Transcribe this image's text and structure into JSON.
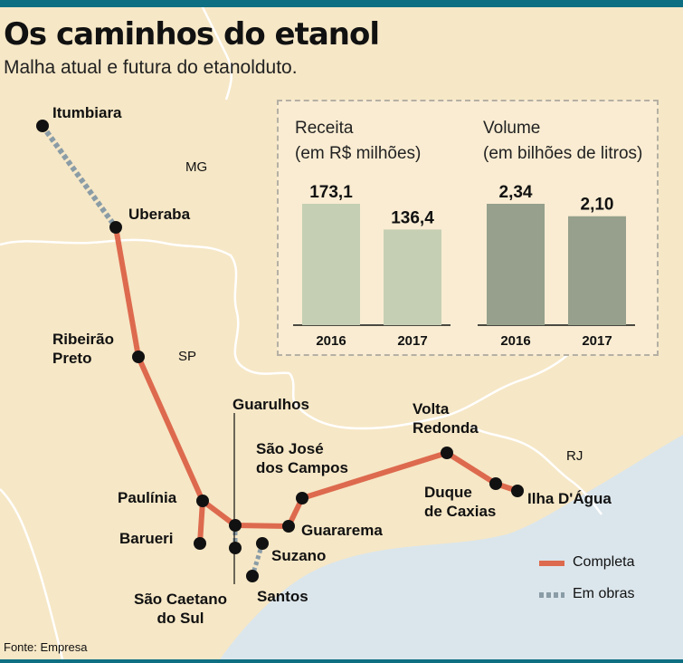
{
  "title": "Os caminhos do etanol",
  "subtitle": "Malha atual e futura do etanolduto.",
  "source": "Fonte: Empresa",
  "colors": {
    "completa": "#dd6a4e",
    "em_obras": "#8a9ca6",
    "receita_bar": "#c5cfb3",
    "volume_bar": "#96a08c",
    "sea": "#dbe6ec",
    "land": "#f6e7c6"
  },
  "states": {
    "mg": "MG",
    "sp": "SP",
    "rj": "RJ"
  },
  "cities": {
    "itumbiara": "Itumbiara",
    "uberaba": "Uberaba",
    "ribeirao_1": "Ribeirão",
    "ribeirao_2": "Preto",
    "guarulhos": "Guarulhos",
    "sjc_1": "São José",
    "sjc_2": "dos Campos",
    "volta_1": "Volta",
    "volta_2": "Redonda",
    "paulinia": "Paulínia",
    "barueri": "Barueri",
    "guararema": "Guararema",
    "suzano": "Suzano",
    "duque_1": "Duque",
    "duque_2": "de Caxias",
    "ilha": "Ilha D'Água",
    "sao_caetano_1": "São Caetano",
    "sao_caetano_2": "do Sul",
    "santos": "Santos"
  },
  "legend": {
    "completa": "Completa",
    "em_obras": "Em obras"
  },
  "chart_data": [
    {
      "type": "bar",
      "title": "Receita",
      "subtitle": "(em R$ milhões)",
      "categories": [
        "2016",
        "2017"
      ],
      "values": [
        173.1,
        136.4
      ],
      "value_labels": [
        "173,1",
        "136,4"
      ],
      "ylim": [
        0,
        173.1
      ]
    },
    {
      "type": "bar",
      "title": "Volume",
      "subtitle": "(em bilhões de litros)",
      "categories": [
        "2016",
        "2017"
      ],
      "values": [
        2.34,
        2.1
      ],
      "value_labels": [
        "2,34",
        "2,10"
      ],
      "ylim": [
        0,
        2.34
      ]
    }
  ]
}
